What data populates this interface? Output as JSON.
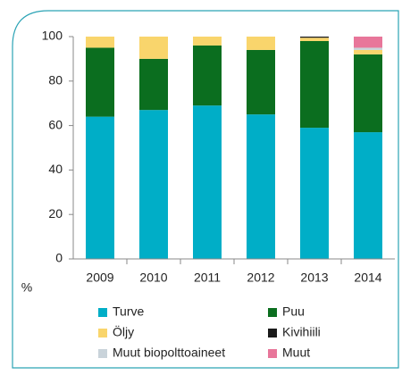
{
  "chart_data": {
    "type": "stacked_bar",
    "categories": [
      "2009",
      "2010",
      "2011",
      "2012",
      "2013",
      "2014"
    ],
    "series": [
      {
        "name": "Turve",
        "color": "#00aec7",
        "values": [
          64,
          67,
          69,
          65,
          59,
          57
        ]
      },
      {
        "name": "Puu",
        "color": "#0b6e1f",
        "values": [
          31,
          23,
          27,
          29,
          39,
          35
        ]
      },
      {
        "name": "Öljy",
        "color": "#f9d56c",
        "values": [
          5,
          10,
          4,
          6,
          1.5,
          2
        ]
      },
      {
        "name": "Kivihiili",
        "color": "#1a1a1a",
        "values": [
          0,
          0,
          0,
          0,
          0.5,
          0
        ]
      },
      {
        "name": "Muut biopolttoaineet",
        "color": "#c9d3da",
        "values": [
          0,
          0,
          0,
          0,
          0,
          1
        ]
      },
      {
        "name": "Muut",
        "color": "#e8769a",
        "values": [
          0,
          0,
          0,
          0,
          0,
          5
        ]
      }
    ],
    "y_unit": "%",
    "ylim": [
      0,
      100
    ],
    "yticks": [
      0,
      20,
      40,
      60,
      80,
      100
    ],
    "grid": false
  }
}
